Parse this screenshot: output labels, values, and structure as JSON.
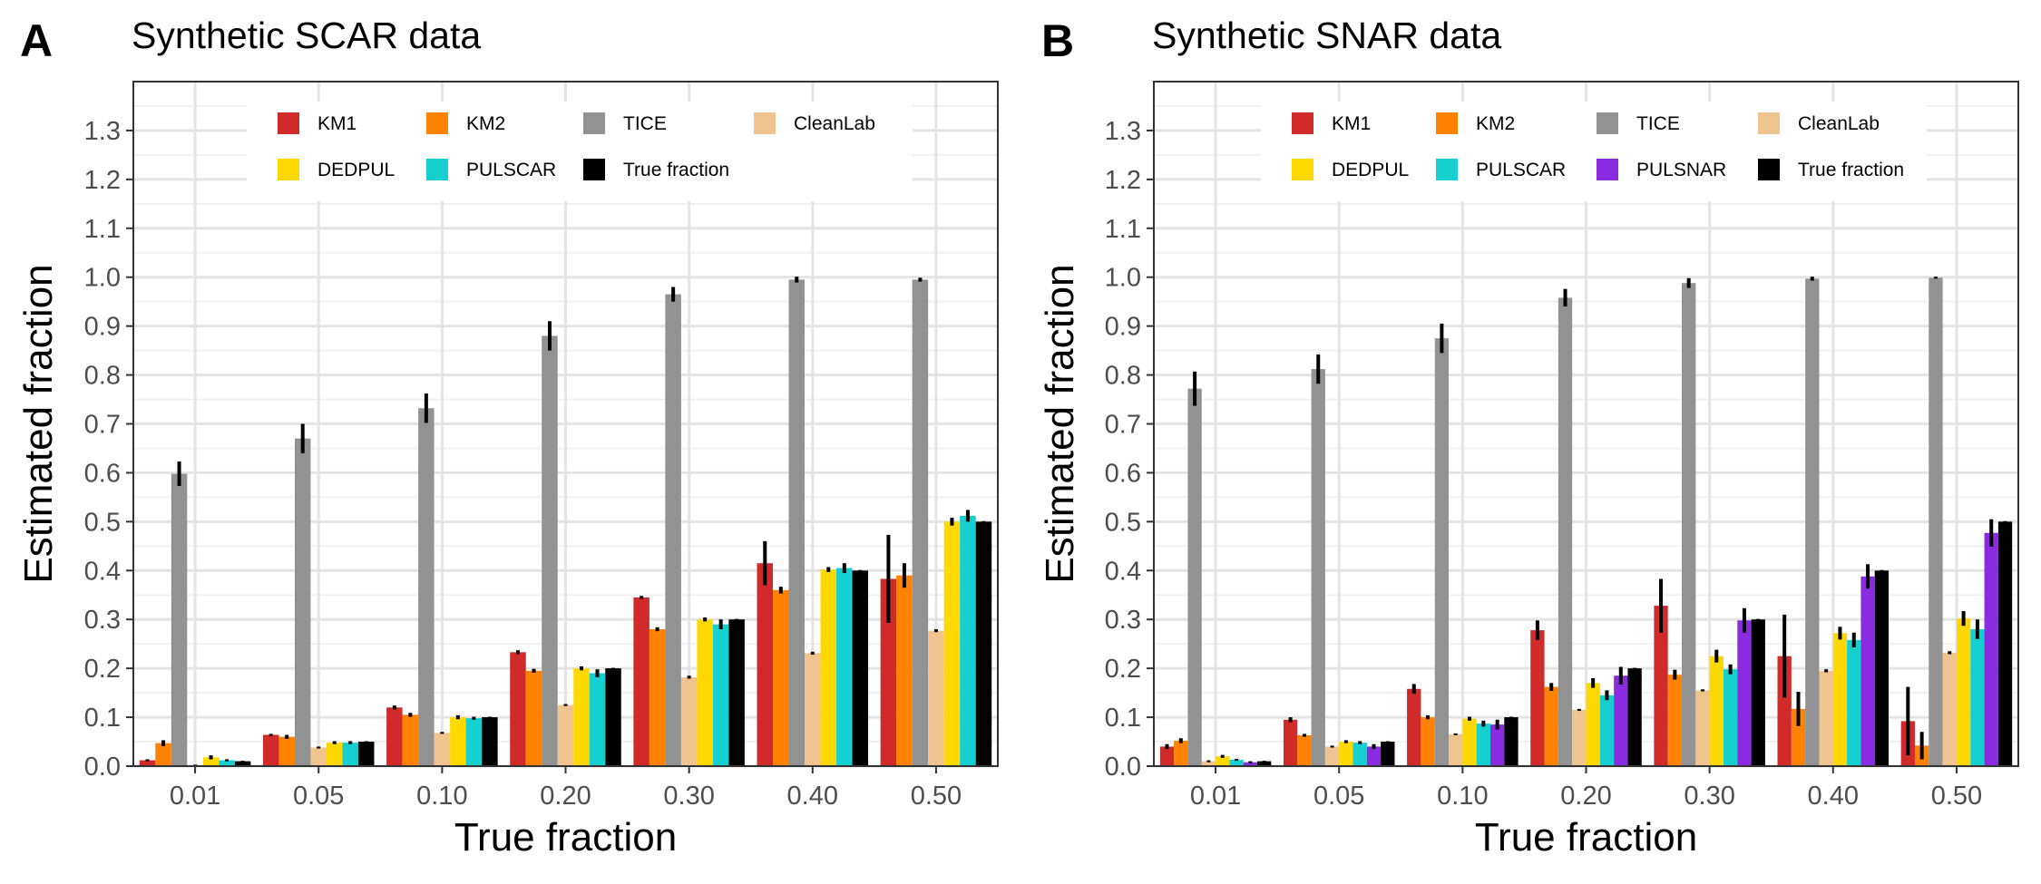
{
  "colors": {
    "KM1": "#d12a2a",
    "KM2": "#ff8200",
    "TICE": "#929292",
    "CleanLab": "#f0c48e",
    "DEDPUL": "#ffd800",
    "PULSCAR": "#16cfcf",
    "PULSNAR": "#8a2be2",
    "True fraction": "#000000"
  },
  "chart_data": [
    {
      "type": "bar",
      "panel_label": "A",
      "title": "Synthetic SCAR data",
      "xlabel": "True fraction",
      "ylabel": "Estimated fraction",
      "ylim": [
        0,
        1.4
      ],
      "yticks": [
        "0.0",
        "0.1",
        "0.2",
        "0.3",
        "0.4",
        "0.5",
        "0.6",
        "0.7",
        "0.8",
        "0.9",
        "1.0",
        "1.1",
        "1.2",
        "1.3"
      ],
      "categories": [
        "0.01",
        "0.05",
        "0.10",
        "0.20",
        "0.30",
        "0.40",
        "0.50"
      ],
      "legend_rows": [
        [
          "KM1",
          "KM2",
          "TICE",
          "CleanLab"
        ],
        [
          "DEDPUL",
          "PULSCAR",
          "True fraction"
        ]
      ],
      "series": [
        {
          "name": "KM1",
          "values": [
            0.012,
            0.064,
            0.12,
            0.233,
            0.345,
            0.415,
            0.383
          ],
          "err": [
            0.002,
            0.002,
            0.004,
            0.004,
            0.003,
            0.045,
            0.09
          ]
        },
        {
          "name": "KM2",
          "values": [
            0.047,
            0.06,
            0.105,
            0.195,
            0.28,
            0.36,
            0.39
          ],
          "err": [
            0.006,
            0.004,
            0.004,
            0.004,
            0.004,
            0.007,
            0.025
          ]
        },
        {
          "name": "TICE",
          "values": [
            0.598,
            0.67,
            0.732,
            0.88,
            0.965,
            0.995,
            0.995
          ],
          "err": [
            0.025,
            0.03,
            0.03,
            0.03,
            0.015,
            0.006,
            0.004
          ]
        },
        {
          "name": "CleanLab",
          "values": [
            0.002,
            0.038,
            0.068,
            0.125,
            0.182,
            0.231,
            0.277
          ],
          "err": [
            0.001,
            0.002,
            0.002,
            0.002,
            0.003,
            0.003,
            0.003
          ]
        },
        {
          "name": "DEDPUL",
          "values": [
            0.018,
            0.048,
            0.1,
            0.2,
            0.3,
            0.402,
            0.5
          ],
          "err": [
            0.004,
            0.003,
            0.004,
            0.004,
            0.004,
            0.005,
            0.008
          ]
        },
        {
          "name": "PULSCAR",
          "values": [
            0.012,
            0.048,
            0.098,
            0.19,
            0.29,
            0.405,
            0.512
          ],
          "err": [
            0.002,
            0.003,
            0.003,
            0.008,
            0.01,
            0.01,
            0.012
          ]
        },
        {
          "name": "True fraction",
          "values": [
            0.01,
            0.05,
            0.1,
            0.2,
            0.3,
            0.4,
            0.5
          ],
          "err": [
            0.001,
            0.001,
            0.001,
            0.001,
            0.001,
            0.001,
            0.001
          ]
        }
      ]
    },
    {
      "type": "bar",
      "panel_label": "B",
      "title": "Synthetic SNAR data",
      "xlabel": "True fraction",
      "ylabel": "Estimated fraction",
      "ylim": [
        0,
        1.4
      ],
      "yticks": [
        "0.0",
        "0.1",
        "0.2",
        "0.3",
        "0.4",
        "0.5",
        "0.6",
        "0.7",
        "0.8",
        "0.9",
        "1.0",
        "1.1",
        "1.2",
        "1.3"
      ],
      "categories": [
        "0.01",
        "0.05",
        "0.10",
        "0.20",
        "0.30",
        "0.40",
        "0.50"
      ],
      "legend_rows": [
        [
          "KM1",
          "KM2",
          "TICE",
          "CleanLab"
        ],
        [
          "DEDPUL",
          "PULSCAR",
          "PULSNAR",
          "True fraction"
        ]
      ],
      "series": [
        {
          "name": "KM1",
          "values": [
            0.04,
            0.095,
            0.158,
            0.278,
            0.328,
            0.225,
            0.092
          ],
          "err": [
            0.005,
            0.005,
            0.01,
            0.02,
            0.055,
            0.085,
            0.07
          ]
        },
        {
          "name": "KM2",
          "values": [
            0.052,
            0.063,
            0.1,
            0.162,
            0.187,
            0.117,
            0.042
          ],
          "err": [
            0.005,
            0.003,
            0.004,
            0.008,
            0.01,
            0.035,
            0.028
          ]
        },
        {
          "name": "TICE",
          "values": [
            0.772,
            0.812,
            0.875,
            0.958,
            0.988,
            0.997,
            0.999
          ],
          "err": [
            0.035,
            0.03,
            0.03,
            0.018,
            0.01,
            0.004,
            0.002
          ]
        },
        {
          "name": "CleanLab",
          "values": [
            0.01,
            0.04,
            0.065,
            0.115,
            0.155,
            0.195,
            0.232
          ],
          "err": [
            0.002,
            0.002,
            0.002,
            0.002,
            0.002,
            0.003,
            0.003
          ]
        },
        {
          "name": "DEDPUL",
          "values": [
            0.02,
            0.05,
            0.097,
            0.17,
            0.225,
            0.272,
            0.302
          ],
          "err": [
            0.003,
            0.003,
            0.004,
            0.01,
            0.013,
            0.013,
            0.015
          ]
        },
        {
          "name": "PULSCAR",
          "values": [
            0.013,
            0.048,
            0.087,
            0.145,
            0.198,
            0.258,
            0.28
          ],
          "err": [
            0.002,
            0.003,
            0.006,
            0.01,
            0.01,
            0.015,
            0.02
          ]
        },
        {
          "name": "PULSNAR",
          "values": [
            0.008,
            0.04,
            0.085,
            0.185,
            0.298,
            0.388,
            0.477
          ],
          "err": [
            0.002,
            0.005,
            0.01,
            0.018,
            0.025,
            0.025,
            0.028
          ]
        },
        {
          "name": "True fraction",
          "values": [
            0.01,
            0.05,
            0.1,
            0.2,
            0.3,
            0.4,
            0.5
          ],
          "err": [
            0.001,
            0.001,
            0.001,
            0.001,
            0.001,
            0.001,
            0.001
          ]
        }
      ]
    }
  ]
}
